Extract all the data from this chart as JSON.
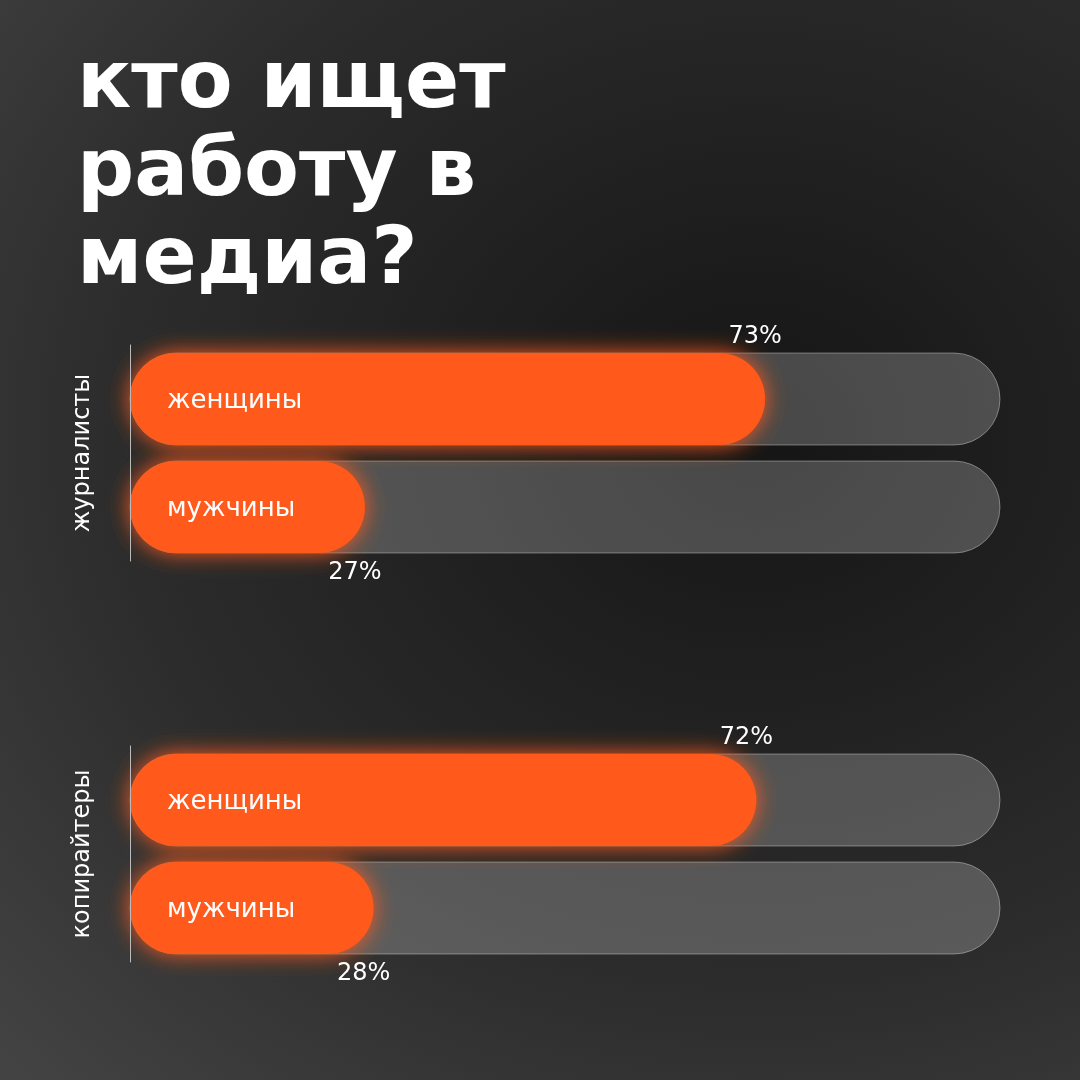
{
  "chart_data": [
    {
      "type": "bar",
      "orientation": "horizontal",
      "title": "кто ищет работу в медиа?",
      "ylabel": "журналисты",
      "categories": [
        "женщины",
        "мужчины"
      ],
      "values": [
        73,
        27
      ],
      "value_labels": [
        "73%",
        "27%"
      ],
      "color": "#ff5a1a",
      "xlim": [
        0,
        100
      ],
      "tick_labels": "y",
      "grid": false
    },
    {
      "type": "bar",
      "orientation": "horizontal",
      "ylabel": "копирайтеры",
      "categories": [
        "женщины",
        "мужчины"
      ],
      "values": [
        72,
        28
      ],
      "value_labels": [
        "72%",
        "28%"
      ],
      "color": "#ff5a1a",
      "xlim": [
        0,
        100
      ],
      "tick_labels": "y",
      "grid": false
    }
  ]
}
